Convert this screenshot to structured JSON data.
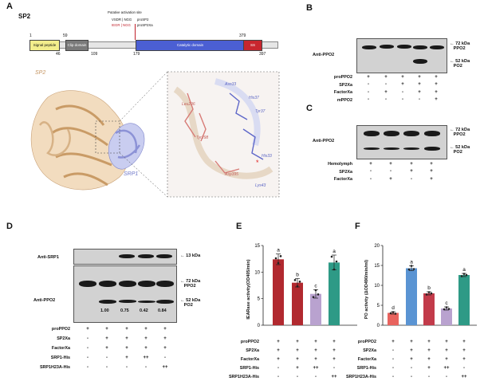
{
  "panel_letters": {
    "a": "A",
    "b": "B",
    "c": "C",
    "d": "D",
    "e": "E",
    "f": "F"
  },
  "panel_a": {
    "protein": "SP2",
    "positions_top": [
      "1",
      "59",
      "379"
    ],
    "positions_bottom": [
      "46",
      "109",
      "179",
      "397"
    ],
    "activation_title": "Putative activation site",
    "activation_lines": [
      "VSDR | NGG",
      "IEGR | NGG"
    ],
    "activation_right": [
      "proSP2",
      "proSP2Xa"
    ],
    "domains": [
      "Signal peptide",
      "Clip domain",
      "Catalytic domain",
      "SS"
    ],
    "struct_labels": {
      "sp2": "SP2",
      "srp1": "SRP1"
    },
    "residues": [
      "Asn33",
      "His37",
      "Tyr37",
      "Leu296",
      "Tyr298",
      "His33",
      "Asp395",
      "Lys43"
    ]
  },
  "panel_b": {
    "antibody": "Anti-PPO2",
    "mw_top": [
      "72 kDa",
      "PPO2"
    ],
    "mw_bottom": [
      "52 kDa",
      "PO2"
    ],
    "rows": [
      {
        "label": "proPPO2",
        "signs": [
          "+",
          "+",
          "+",
          "+",
          "+"
        ]
      },
      {
        "label": "SP2Xa",
        "signs": [
          "-",
          "-",
          "+",
          "+",
          "+"
        ]
      },
      {
        "label": "FactorXa",
        "signs": [
          "-",
          "+",
          "-",
          "+",
          "+"
        ]
      },
      {
        "label": "mPPO2",
        "signs": [
          "-",
          "-",
          "-",
          "-",
          "+"
        ]
      }
    ]
  },
  "panel_c": {
    "antibody": "Anti-PPO2",
    "mw_top": [
      "72 kDa",
      "PPO2"
    ],
    "mw_bottom": [
      "52 kDa",
      "PO2"
    ],
    "rows": [
      {
        "label": "Hemolymph",
        "signs": [
          "+",
          "+",
          "+",
          "+"
        ]
      },
      {
        "label": "SP2Xa",
        "signs": [
          "-",
          "-",
          "+",
          "+"
        ]
      },
      {
        "label": "FactorXa",
        "signs": [
          "-",
          "+",
          "-",
          "+"
        ]
      }
    ]
  },
  "panel_d": {
    "antibody_top": "Anti-SRP1",
    "antibody_bottom": "Anti-PPO2",
    "mw_srp1": "13 kDa",
    "mw_top": [
      "72 kDa",
      "PPO2"
    ],
    "mw_bottom": [
      "52 kDa",
      "PO2"
    ],
    "ratios": [
      "1.00",
      "0.75",
      "0.42",
      "0.84"
    ],
    "rows": [
      {
        "label": "proPPO2",
        "signs": [
          "+",
          "+",
          "+",
          "+",
          "+"
        ]
      },
      {
        "label": "SP2Xa",
        "signs": [
          "-",
          "+",
          "+",
          "+",
          "+"
        ]
      },
      {
        "label": "FactorXa",
        "signs": [
          "-",
          "+",
          "+",
          "+",
          "+"
        ]
      },
      {
        "label": "SRP1-His",
        "signs": [
          "-",
          "-",
          "+",
          "++",
          "-"
        ]
      },
      {
        "label": "SRP1H23A-His",
        "signs": [
          "-",
          "-",
          "-",
          "-",
          "++"
        ]
      }
    ]
  },
  "panel_e": {
    "ylabel": "IEARase activity(OD405/min)",
    "ylim": [
      0,
      15
    ],
    "yticks": [
      "0",
      "5",
      "10",
      "15"
    ],
    "rows": [
      {
        "label": "proPPO2",
        "signs": [
          "+",
          "+",
          "+",
          "+"
        ]
      },
      {
        "label": "SP2Xa",
        "signs": [
          "+",
          "+",
          "+",
          "+"
        ]
      },
      {
        "label": "FactorXa",
        "signs": [
          "+",
          "+",
          "+",
          "+"
        ]
      },
      {
        "label": "SRP1-His",
        "signs": [
          "-",
          "+",
          "++",
          "-"
        ]
      },
      {
        "label": "SRP1H23A-His",
        "signs": [
          "-",
          "-",
          "-",
          "++"
        ]
      }
    ]
  },
  "panel_f": {
    "ylabel": "PO activity (ΔOD490/min/ml)",
    "ylim": [
      0,
      20
    ],
    "yticks": [
      "0",
      "5",
      "10",
      "15",
      "20"
    ],
    "rows": [
      {
        "label": "proPPO2",
        "signs": [
          "+",
          "+",
          "+",
          "+",
          "+"
        ]
      },
      {
        "label": "SP2Xa",
        "signs": [
          "-",
          "+",
          "+",
          "+",
          "+"
        ]
      },
      {
        "label": "FactorXa",
        "signs": [
          "-",
          "+",
          "+",
          "+",
          "+"
        ]
      },
      {
        "label": "SRP1-His",
        "signs": [
          "-",
          "-",
          "+",
          "++",
          "-"
        ]
      },
      {
        "label": "SRP1H23A-His",
        "signs": [
          "-",
          "-",
          "-",
          "-",
          "++"
        ]
      }
    ]
  },
  "chart_data": [
    {
      "type": "bar",
      "panel": "E",
      "ylabel": "IEARase activity(OD405/min)",
      "ylim": [
        0,
        15
      ],
      "values": [
        12.4,
        8.0,
        5.9,
        11.8
      ],
      "errors": [
        1.0,
        0.8,
        0.8,
        1.4
      ],
      "points": [
        [
          12.6,
          11.7,
          13.0
        ],
        [
          8.5,
          7.3,
          8.2
        ],
        [
          5.3,
          6.6,
          5.8
        ],
        [
          12.9,
          10.5,
          12.0
        ]
      ],
      "letters": [
        "a",
        "b",
        "c",
        "a"
      ],
      "colors": [
        "#b1292f",
        "#b1292f",
        "#b9a2cf",
        "#2e9a86"
      ],
      "colors_note": "bar1 red-ish, bar2 red, bar3 lavender, bar4 teal"
    },
    {
      "type": "bar",
      "panel": "F",
      "ylabel": "PO activity (ΔOD490/min/ml)",
      "ylim": [
        0,
        20
      ],
      "values": [
        3.1,
        14.3,
        8.0,
        4.2,
        12.6
      ],
      "errors": [
        0.3,
        0.6,
        0.4,
        0.4,
        0.4
      ],
      "points": [
        [
          3.0,
          3.3,
          2.9
        ],
        [
          14.0,
          14.9,
          14.1
        ],
        [
          7.7,
          8.3,
          8.0
        ],
        [
          4.0,
          4.5,
          4.1
        ],
        [
          12.3,
          12.9,
          12.6
        ]
      ],
      "letters": [
        "d",
        "a",
        "b",
        "c",
        "a"
      ],
      "colors": [
        "#e8635e",
        "#5a94d3",
        "#c23b4a",
        "#b9a2cf",
        "#2e9a86"
      ]
    }
  ]
}
